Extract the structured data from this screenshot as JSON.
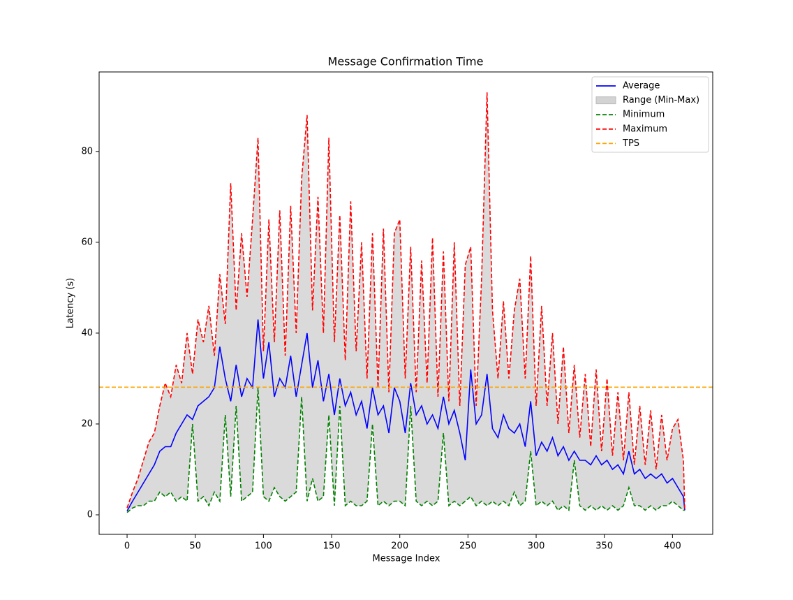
{
  "chart_data": {
    "type": "line",
    "title": "Message Confirmation Time",
    "xlabel": "Message Index",
    "ylabel": "Latency (s)",
    "x": [
      0,
      4,
      8,
      12,
      16,
      20,
      24,
      28,
      32,
      36,
      40,
      44,
      48,
      52,
      56,
      60,
      64,
      68,
      72,
      76,
      80,
      84,
      88,
      92,
      96,
      100,
      104,
      108,
      112,
      116,
      120,
      124,
      128,
      132,
      136,
      140,
      144,
      148,
      152,
      156,
      160,
      164,
      168,
      172,
      176,
      180,
      184,
      188,
      192,
      196,
      200,
      204,
      208,
      212,
      216,
      220,
      224,
      228,
      232,
      236,
      240,
      244,
      248,
      252,
      256,
      260,
      264,
      268,
      272,
      276,
      280,
      284,
      288,
      292,
      296,
      300,
      304,
      308,
      312,
      316,
      320,
      324,
      328,
      332,
      336,
      340,
      344,
      348,
      352,
      356,
      360,
      364,
      368,
      372,
      376,
      380,
      384,
      388,
      392,
      396,
      400,
      404,
      408,
      409
    ],
    "series": [
      {
        "name": "Average",
        "color": "#0000ff",
        "style": "solid",
        "values": [
          0.8,
          3,
          5,
          7,
          9,
          11,
          14,
          15,
          15,
          18,
          20,
          22,
          21,
          24,
          25,
          26,
          28,
          37,
          30,
          25,
          33,
          26,
          30,
          28,
          43,
          30,
          38,
          26,
          30,
          28,
          35,
          26,
          33,
          40,
          28,
          34,
          25,
          31,
          22,
          30,
          24,
          27,
          22,
          25,
          19,
          28,
          22,
          24,
          18,
          28,
          25,
          18,
          29,
          22,
          24,
          20,
          22,
          19,
          26,
          20,
          23,
          18,
          12,
          32,
          20,
          22,
          31,
          19,
          17,
          22,
          19,
          18,
          20,
          15,
          25,
          13,
          16,
          14,
          17,
          13,
          15,
          12,
          14,
          12,
          12,
          11,
          13,
          11,
          12,
          10,
          11,
          9,
          14,
          9,
          10,
          8,
          9,
          8,
          9,
          7,
          8,
          6,
          4,
          1
        ]
      },
      {
        "name": "Minimum",
        "color": "#008000",
        "style": "dashed",
        "values": [
          0.5,
          1.5,
          2,
          2,
          3,
          3,
          5,
          4,
          5,
          3,
          4,
          3,
          20,
          3,
          4,
          2,
          5,
          3,
          22,
          4,
          24,
          3,
          4,
          5,
          28,
          4,
          3,
          6,
          4,
          3,
          4,
          5,
          26,
          3,
          8,
          3,
          4,
          22,
          2,
          24,
          2,
          3,
          2,
          2,
          3,
          20,
          2,
          3,
          2,
          3,
          3,
          2,
          24,
          3,
          2,
          3,
          2,
          3,
          18,
          2,
          3,
          2,
          3,
          4,
          2,
          3,
          2,
          3,
          2,
          3,
          2,
          5,
          2,
          3,
          14,
          2,
          3,
          2,
          3,
          1,
          2,
          1,
          12,
          2,
          1,
          2,
          1,
          2,
          1,
          2,
          1,
          2,
          6,
          2,
          2,
          1,
          2,
          1,
          2,
          2,
          3,
          2,
          1,
          1
        ]
      },
      {
        "name": "Maximum",
        "color": "#ff0000",
        "style": "dashed",
        "values": [
          1.5,
          5,
          8,
          12,
          16,
          18,
          24,
          29,
          26,
          33,
          29,
          40,
          31,
          43,
          38,
          46,
          35,
          53,
          42,
          73,
          45,
          62,
          48,
          65,
          83,
          36,
          65,
          38,
          67,
          35,
          68,
          40,
          74,
          88,
          45,
          70,
          40,
          83,
          38,
          66,
          34,
          69,
          36,
          60,
          30,
          62,
          28,
          63,
          27,
          62,
          65,
          30,
          59,
          27,
          56,
          29,
          61,
          26,
          58,
          25,
          60,
          24,
          55,
          59,
          24,
          52,
          93,
          45,
          30,
          47,
          30,
          45,
          52,
          30,
          57,
          24,
          46,
          24,
          40,
          20,
          37,
          18,
          33,
          17,
          31,
          15,
          32,
          14,
          30,
          13,
          27,
          12,
          27,
          11,
          24,
          11,
          23,
          10,
          22,
          12,
          19,
          21,
          12,
          1
        ]
      }
    ],
    "range": {
      "name": "Range (Min-Max)",
      "color": "#d3d3d3",
      "between": [
        "Minimum",
        "Maximum"
      ]
    },
    "hline": {
      "name": "TPS",
      "color": "#ffa500",
      "style": "dashed",
      "value": 28.1
    },
    "xlim": [
      -20.5,
      429.5
    ],
    "ylim": [
      -4.3,
      97.5
    ],
    "xticks": [
      0,
      50,
      100,
      150,
      200,
      250,
      300,
      350,
      400
    ],
    "yticks": [
      0,
      20,
      40,
      60,
      80
    ],
    "legend": "upper right"
  }
}
